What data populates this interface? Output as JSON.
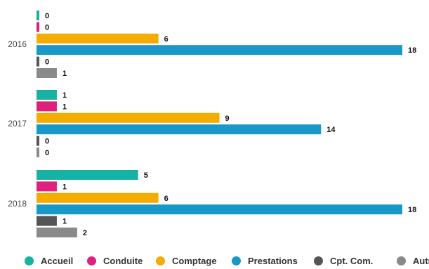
{
  "chart_data": {
    "type": "bar",
    "orientation": "horizontal",
    "title": "",
    "xlabel": "",
    "ylabel": "",
    "categories": [
      "2016",
      "2017",
      "2018"
    ],
    "series": [
      {
        "name": "Accueil",
        "color": "#17b2a3",
        "values": [
          0,
          1,
          5
        ]
      },
      {
        "name": "Conduite",
        "color": "#e0207d",
        "values": [
          0,
          1,
          1
        ]
      },
      {
        "name": "Comptage",
        "color": "#f5ac00",
        "values": [
          6,
          9,
          6
        ]
      },
      {
        "name": "Prestations",
        "color": "#1798c8",
        "values": [
          18,
          14,
          18
        ]
      },
      {
        "name": "Cpt. Com.",
        "color": "#555555",
        "values": [
          0,
          0,
          1
        ]
      },
      {
        "name": "Autres",
        "color": "#8a8a8a",
        "values": [
          1,
          0,
          2
        ]
      }
    ],
    "xlim": [
      0,
      18
    ],
    "grid": false,
    "data_labels": true,
    "legend_position": "bottom"
  }
}
